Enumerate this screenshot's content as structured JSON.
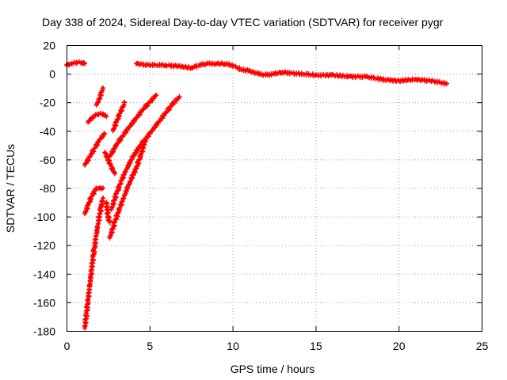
{
  "chart_data": {
    "type": "scatter",
    "title": "Day 338 of 2024, Sidereal Day-to-day VTEC variation (SDTVAR) for receiver pygr",
    "xlabel": "GPS time / hours",
    "ylabel": "SDTVAR / TECUs",
    "xlim": [
      0,
      25
    ],
    "ylim": [
      -180,
      20
    ],
    "x_ticks": [
      "0",
      "5",
      "10",
      "15",
      "20",
      "25"
    ],
    "y_ticks": [
      "20",
      "0",
      "-20",
      "-40",
      "-60",
      "-80",
      "-100",
      "-120",
      "-140",
      "-160",
      "-180"
    ],
    "grid": true,
    "marker": "+",
    "color": "#ff0000",
    "series": [
      {
        "name": "arc-early-top",
        "x": [
          0.0,
          0.3,
          0.6,
          0.9,
          1.1
        ],
        "y": [
          6,
          7,
          8,
          8,
          7
        ]
      },
      {
        "name": "arc-main-top",
        "x": [
          4.2,
          5.0,
          6.0,
          7.0,
          7.5,
          8.0,
          8.5,
          9.0,
          9.5,
          10.0,
          10.5,
          11.0,
          11.5,
          12.0,
          12.5,
          13.0,
          14.0,
          15.0,
          16.0,
          17.0,
          18.0,
          19.0,
          20.0,
          21.0,
          22.0,
          22.9
        ],
        "y": [
          7,
          6,
          6,
          5,
          4,
          6,
          7,
          7,
          7,
          6,
          3,
          2,
          0,
          -1,
          0,
          1,
          0,
          -1,
          -1,
          -2,
          -2,
          -4,
          -5,
          -4,
          -5,
          -7
        ]
      },
      {
        "name": "arc-steep-left",
        "x": [
          1.1,
          1.2,
          1.3,
          1.4,
          1.5,
          1.6,
          1.7,
          1.8,
          1.9,
          2.0,
          2.1,
          2.2
        ],
        "y": [
          -178,
          -168,
          -158,
          -148,
          -138,
          -128,
          -120,
          -112,
          -105,
          -98,
          -92,
          -87
        ]
      },
      {
        "name": "arc-left-upper",
        "x": [
          1.1,
          1.3,
          1.5,
          1.8,
          2.0,
          2.2
        ],
        "y": [
          -98,
          -92,
          -86,
          -80,
          -80,
          -80
        ]
      },
      {
        "name": "arc-diag-a",
        "x": [
          1.1,
          1.4,
          1.7,
          2.0,
          2.3
        ],
        "y": [
          -64,
          -58,
          -52,
          -46,
          -42
        ]
      },
      {
        "name": "arc-short-a",
        "x": [
          1.3,
          1.6,
          1.9,
          2.2,
          2.4
        ],
        "y": [
          -34,
          -30,
          -28,
          -28,
          -30
        ]
      },
      {
        "name": "arc-short-b",
        "x": [
          1.8,
          1.9,
          2.0,
          2.1,
          2.2
        ],
        "y": [
          -22,
          -20,
          -17,
          -13,
          -10
        ]
      },
      {
        "name": "arc-frag-c",
        "x": [
          2.3,
          2.5,
          2.7,
          2.9
        ],
        "y": [
          -55,
          -60,
          -65,
          -70
        ]
      },
      {
        "name": "arc-frag-d",
        "x": [
          2.4,
          2.5,
          2.6
        ],
        "y": [
          -90,
          -100,
          -104
        ]
      },
      {
        "name": "arc-mid-a",
        "x": [
          2.6,
          3.0,
          3.4,
          3.8,
          4.2,
          4.6,
          5.0,
          5.4
        ],
        "y": [
          -58,
          -50,
          -43,
          -37,
          -31,
          -25,
          -20,
          -15
        ]
      },
      {
        "name": "arc-mid-b",
        "x": [
          2.7,
          3.0,
          3.3,
          3.6,
          4.0,
          4.4,
          4.8,
          5.2,
          5.6,
          6.0,
          6.4,
          6.8
        ],
        "y": [
          -95,
          -84,
          -75,
          -67,
          -58,
          -51,
          -45,
          -39,
          -33,
          -27,
          -21,
          -16
        ]
      },
      {
        "name": "arc-mid-c",
        "x": [
          2.6,
          2.9,
          3.2,
          3.5,
          3.8,
          4.2,
          4.5,
          4.8
        ],
        "y": [
          -115,
          -104,
          -94,
          -85,
          -76,
          -66,
          -56,
          -45
        ]
      },
      {
        "name": "arc-mid-d",
        "x": [
          2.8,
          3.0,
          3.2,
          3.4,
          3.5
        ],
        "y": [
          -40,
          -34,
          -28,
          -23,
          -20
        ]
      }
    ]
  }
}
